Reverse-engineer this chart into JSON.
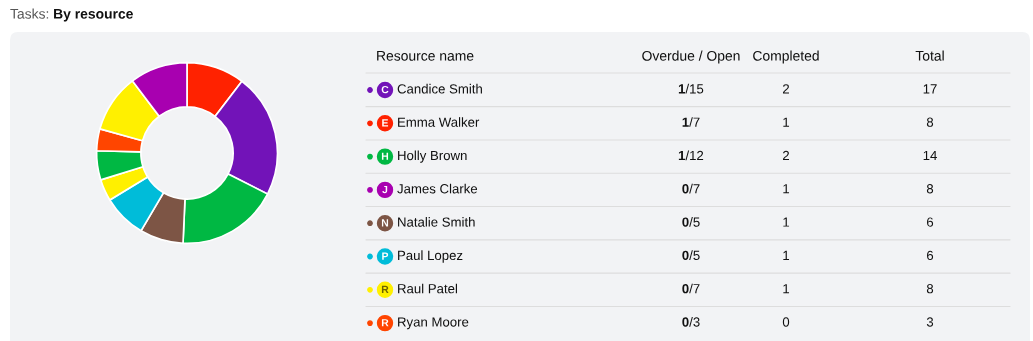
{
  "chart_data": [
    {
      "type": "donut",
      "title": "Tasks: By resource",
      "categories": [
        null,
        null,
        null,
        null,
        null,
        null,
        null,
        null,
        null,
        null
      ],
      "values": [
        10.4,
        22.1,
        18.2,
        7.8,
        7.8,
        3.9,
        5.2,
        3.9,
        10.4,
        10.3
      ],
      "colors": [
        "#ff2200",
        "#7213b8",
        "#00b843",
        "#7d5545",
        "#00bcd9",
        "#fff000",
        "#00b843",
        "#ff4500",
        "#fff000",
        "#a800b0"
      ]
    },
    {
      "type": "other",
      "categories": [
        "Candice Smith",
        "Emma Walker",
        "Holly Brown",
        "James Clarke",
        "Natalie Smith",
        "Paul Lopez",
        "Raul Patel",
        "Ryan Moore"
      ],
      "colors": [
        "#7213b8",
        "#ff2200",
        "#00b843",
        "#a800b0",
        "#7d5545",
        "#00bcd9",
        "#fff000",
        "#ff4500"
      ],
      "annotations": [
        "Resource name",
        "Overdue / Open",
        "Completed",
        "Total",
        "C",
        "1/15",
        "2",
        "17",
        "E",
        "1/7",
        "1",
        "8",
        "H",
        "1/12",
        "2",
        "14",
        "J",
        "0/7",
        "1",
        "8",
        "N",
        "0/5",
        "1",
        "6",
        "P",
        "0/5",
        "1",
        "6",
        "R",
        "0/7",
        "1",
        "8",
        "R",
        "0/3",
        "0",
        "3"
      ]
    }
  ]
}
